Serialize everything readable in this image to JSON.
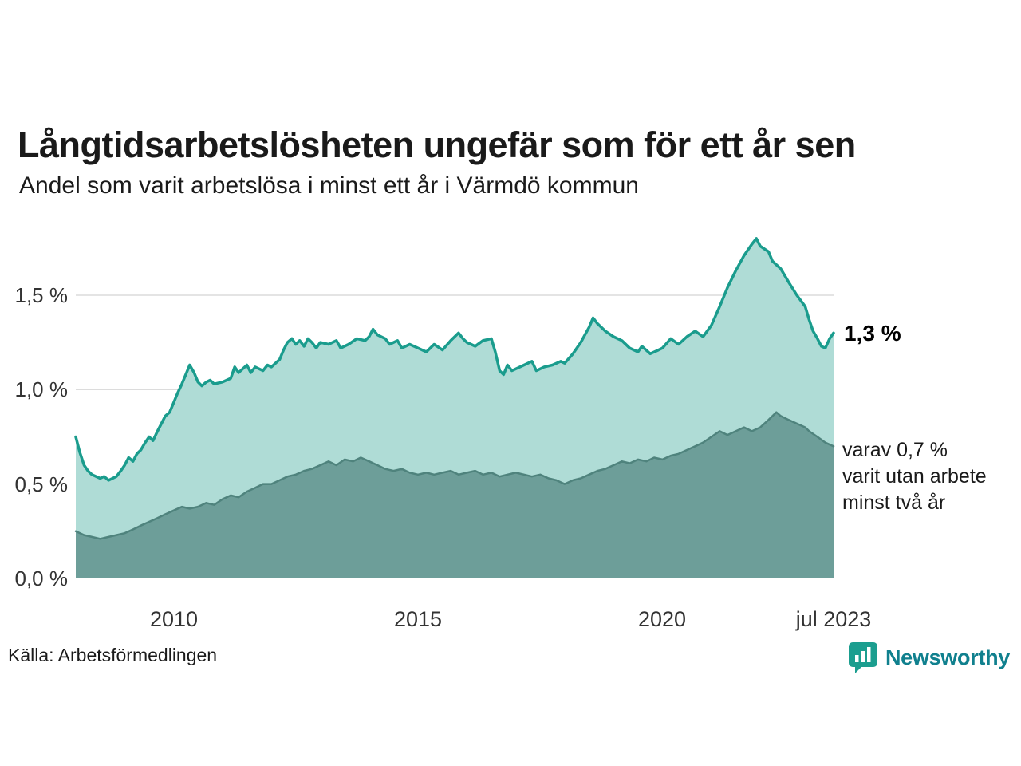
{
  "header": {
    "title": "Långtidsarbetslösheten ungefär som för ett år sen",
    "subtitle": "Andel som varit arbetslösa i minst ett år i Värmdö kommun"
  },
  "annotations": {
    "latest_value": "1,3 %",
    "two_year_line1": "varav 0,7 %",
    "two_year_line2": "varit utan arbete",
    "two_year_line3": "minst två år"
  },
  "footer": {
    "source": "Källa: Arbetsförmedlingen",
    "brand": "Newsworthy"
  },
  "colors": {
    "title": "#1a1a1a",
    "grid": "#dcdcdc",
    "axis_text": "#333333",
    "series_one_year_line": "#1a9c8d",
    "series_one_year_fill": "#afdcd6",
    "series_two_year_line": "#4f837d",
    "series_two_year_fill": "#6d9e99",
    "brand_icon": "#1b9e8f",
    "brand_text": "#10808e"
  },
  "chart_data": {
    "type": "area",
    "title": "Långtidsarbetslösheten ungefär som för ett år sen",
    "subtitle": "Andel som varit arbetslösa i minst ett år i Värmdö kommun",
    "unit": "%",
    "x_range": [
      2008.0,
      2023.5
    ],
    "ylim": [
      0,
      1.9
    ],
    "grid": true,
    "y_ticks": [
      {
        "v": 0.0,
        "label": "0,0 %"
      },
      {
        "v": 0.5,
        "label": "0,5 %"
      },
      {
        "v": 1.0,
        "label": "1,0 %"
      },
      {
        "v": 1.5,
        "label": "1,5 %"
      }
    ],
    "x_ticks": [
      {
        "v": 2010,
        "label": "2010"
      },
      {
        "v": 2015,
        "label": "2015"
      },
      {
        "v": 2020,
        "label": "2020"
      },
      {
        "v": 2023.5,
        "label": "jul 2023"
      }
    ],
    "series": [
      {
        "name": "Arbetslösa minst ett år",
        "end_label": "1,3 %",
        "latest": 1.3,
        "line": "#1a9c8d",
        "fill": "#afdcd6",
        "points": [
          [
            2008.0,
            0.75
          ],
          [
            2008.08,
            0.67
          ],
          [
            2008.17,
            0.6
          ],
          [
            2008.25,
            0.57
          ],
          [
            2008.33,
            0.55
          ],
          [
            2008.5,
            0.53
          ],
          [
            2008.58,
            0.54
          ],
          [
            2008.67,
            0.52
          ],
          [
            2008.83,
            0.54
          ],
          [
            2008.92,
            0.57
          ],
          [
            2009.0,
            0.6
          ],
          [
            2009.08,
            0.64
          ],
          [
            2009.17,
            0.62
          ],
          [
            2009.25,
            0.66
          ],
          [
            2009.33,
            0.68
          ],
          [
            2009.42,
            0.72
          ],
          [
            2009.5,
            0.75
          ],
          [
            2009.58,
            0.73
          ],
          [
            2009.67,
            0.78
          ],
          [
            2009.75,
            0.82
          ],
          [
            2009.83,
            0.86
          ],
          [
            2009.92,
            0.88
          ],
          [
            2010.0,
            0.93
          ],
          [
            2010.08,
            0.98
          ],
          [
            2010.17,
            1.03
          ],
          [
            2010.25,
            1.08
          ],
          [
            2010.33,
            1.13
          ],
          [
            2010.42,
            1.09
          ],
          [
            2010.5,
            1.04
          ],
          [
            2010.58,
            1.02
          ],
          [
            2010.67,
            1.04
          ],
          [
            2010.75,
            1.05
          ],
          [
            2010.83,
            1.03
          ],
          [
            2011.0,
            1.04
          ],
          [
            2011.17,
            1.06
          ],
          [
            2011.25,
            1.12
          ],
          [
            2011.33,
            1.09
          ],
          [
            2011.5,
            1.13
          ],
          [
            2011.58,
            1.09
          ],
          [
            2011.67,
            1.12
          ],
          [
            2011.83,
            1.1
          ],
          [
            2011.92,
            1.13
          ],
          [
            2012.0,
            1.12
          ],
          [
            2012.17,
            1.16
          ],
          [
            2012.25,
            1.21
          ],
          [
            2012.33,
            1.25
          ],
          [
            2012.42,
            1.27
          ],
          [
            2012.5,
            1.24
          ],
          [
            2012.58,
            1.26
          ],
          [
            2012.67,
            1.23
          ],
          [
            2012.75,
            1.27
          ],
          [
            2012.83,
            1.25
          ],
          [
            2012.92,
            1.22
          ],
          [
            2013.0,
            1.25
          ],
          [
            2013.17,
            1.24
          ],
          [
            2013.33,
            1.26
          ],
          [
            2013.42,
            1.22
          ],
          [
            2013.58,
            1.24
          ],
          [
            2013.75,
            1.27
          ],
          [
            2013.92,
            1.26
          ],
          [
            2014.0,
            1.28
          ],
          [
            2014.08,
            1.32
          ],
          [
            2014.17,
            1.29
          ],
          [
            2014.33,
            1.27
          ],
          [
            2014.42,
            1.24
          ],
          [
            2014.58,
            1.26
          ],
          [
            2014.67,
            1.22
          ],
          [
            2014.83,
            1.24
          ],
          [
            2015.0,
            1.22
          ],
          [
            2015.17,
            1.2
          ],
          [
            2015.33,
            1.24
          ],
          [
            2015.5,
            1.21
          ],
          [
            2015.67,
            1.26
          ],
          [
            2015.83,
            1.3
          ],
          [
            2015.92,
            1.27
          ],
          [
            2016.0,
            1.25
          ],
          [
            2016.17,
            1.23
          ],
          [
            2016.33,
            1.26
          ],
          [
            2016.5,
            1.27
          ],
          [
            2016.58,
            1.2
          ],
          [
            2016.67,
            1.1
          ],
          [
            2016.75,
            1.08
          ],
          [
            2016.83,
            1.13
          ],
          [
            2016.92,
            1.1
          ],
          [
            2017.0,
            1.11
          ],
          [
            2017.17,
            1.13
          ],
          [
            2017.33,
            1.15
          ],
          [
            2017.42,
            1.1
          ],
          [
            2017.58,
            1.12
          ],
          [
            2017.75,
            1.13
          ],
          [
            2017.92,
            1.15
          ],
          [
            2018.0,
            1.14
          ],
          [
            2018.17,
            1.19
          ],
          [
            2018.33,
            1.25
          ],
          [
            2018.5,
            1.33
          ],
          [
            2018.58,
            1.38
          ],
          [
            2018.67,
            1.35
          ],
          [
            2018.83,
            1.31
          ],
          [
            2019.0,
            1.28
          ],
          [
            2019.17,
            1.26
          ],
          [
            2019.33,
            1.22
          ],
          [
            2019.5,
            1.2
          ],
          [
            2019.58,
            1.23
          ],
          [
            2019.75,
            1.19
          ],
          [
            2019.92,
            1.21
          ],
          [
            2020.0,
            1.22
          ],
          [
            2020.17,
            1.27
          ],
          [
            2020.33,
            1.24
          ],
          [
            2020.5,
            1.28
          ],
          [
            2020.67,
            1.31
          ],
          [
            2020.83,
            1.28
          ],
          [
            2021.0,
            1.34
          ],
          [
            2021.17,
            1.44
          ],
          [
            2021.33,
            1.54
          ],
          [
            2021.5,
            1.63
          ],
          [
            2021.67,
            1.71
          ],
          [
            2021.83,
            1.77
          ],
          [
            2021.92,
            1.8
          ],
          [
            2022.0,
            1.76
          ],
          [
            2022.17,
            1.73
          ],
          [
            2022.25,
            1.68
          ],
          [
            2022.42,
            1.64
          ],
          [
            2022.58,
            1.57
          ],
          [
            2022.75,
            1.5
          ],
          [
            2022.92,
            1.44
          ],
          [
            2023.0,
            1.37
          ],
          [
            2023.08,
            1.31
          ],
          [
            2023.17,
            1.27
          ],
          [
            2023.25,
            1.23
          ],
          [
            2023.33,
            1.22
          ],
          [
            2023.42,
            1.27
          ],
          [
            2023.5,
            1.3
          ]
        ]
      },
      {
        "name": "Utan arbete minst två år",
        "end_label": "0,7 %",
        "latest": 0.7,
        "line": "#4f837d",
        "fill": "#6d9e99",
        "points": [
          [
            2008.0,
            0.25
          ],
          [
            2008.17,
            0.23
          ],
          [
            2008.33,
            0.22
          ],
          [
            2008.5,
            0.21
          ],
          [
            2008.67,
            0.22
          ],
          [
            2008.83,
            0.23
          ],
          [
            2009.0,
            0.24
          ],
          [
            2009.17,
            0.26
          ],
          [
            2009.33,
            0.28
          ],
          [
            2009.5,
            0.3
          ],
          [
            2009.67,
            0.32
          ],
          [
            2009.83,
            0.34
          ],
          [
            2010.0,
            0.36
          ],
          [
            2010.17,
            0.38
          ],
          [
            2010.33,
            0.37
          ],
          [
            2010.5,
            0.38
          ],
          [
            2010.67,
            0.4
          ],
          [
            2010.83,
            0.39
          ],
          [
            2011.0,
            0.42
          ],
          [
            2011.17,
            0.44
          ],
          [
            2011.33,
            0.43
          ],
          [
            2011.5,
            0.46
          ],
          [
            2011.67,
            0.48
          ],
          [
            2011.83,
            0.5
          ],
          [
            2012.0,
            0.5
          ],
          [
            2012.17,
            0.52
          ],
          [
            2012.33,
            0.54
          ],
          [
            2012.5,
            0.55
          ],
          [
            2012.67,
            0.57
          ],
          [
            2012.83,
            0.58
          ],
          [
            2013.0,
            0.6
          ],
          [
            2013.17,
            0.62
          ],
          [
            2013.33,
            0.6
          ],
          [
            2013.5,
            0.63
          ],
          [
            2013.67,
            0.62
          ],
          [
            2013.83,
            0.64
          ],
          [
            2014.0,
            0.62
          ],
          [
            2014.17,
            0.6
          ],
          [
            2014.33,
            0.58
          ],
          [
            2014.5,
            0.57
          ],
          [
            2014.67,
            0.58
          ],
          [
            2014.83,
            0.56
          ],
          [
            2015.0,
            0.55
          ],
          [
            2015.17,
            0.56
          ],
          [
            2015.33,
            0.55
          ],
          [
            2015.5,
            0.56
          ],
          [
            2015.67,
            0.57
          ],
          [
            2015.83,
            0.55
          ],
          [
            2016.0,
            0.56
          ],
          [
            2016.17,
            0.57
          ],
          [
            2016.33,
            0.55
          ],
          [
            2016.5,
            0.56
          ],
          [
            2016.67,
            0.54
          ],
          [
            2016.83,
            0.55
          ],
          [
            2017.0,
            0.56
          ],
          [
            2017.17,
            0.55
          ],
          [
            2017.33,
            0.54
          ],
          [
            2017.5,
            0.55
          ],
          [
            2017.67,
            0.53
          ],
          [
            2017.83,
            0.52
          ],
          [
            2018.0,
            0.5
          ],
          [
            2018.17,
            0.52
          ],
          [
            2018.33,
            0.53
          ],
          [
            2018.5,
            0.55
          ],
          [
            2018.67,
            0.57
          ],
          [
            2018.83,
            0.58
          ],
          [
            2019.0,
            0.6
          ],
          [
            2019.17,
            0.62
          ],
          [
            2019.33,
            0.61
          ],
          [
            2019.5,
            0.63
          ],
          [
            2019.67,
            0.62
          ],
          [
            2019.83,
            0.64
          ],
          [
            2020.0,
            0.63
          ],
          [
            2020.17,
            0.65
          ],
          [
            2020.33,
            0.66
          ],
          [
            2020.5,
            0.68
          ],
          [
            2020.67,
            0.7
          ],
          [
            2020.83,
            0.72
          ],
          [
            2021.0,
            0.75
          ],
          [
            2021.17,
            0.78
          ],
          [
            2021.33,
            0.76
          ],
          [
            2021.5,
            0.78
          ],
          [
            2021.67,
            0.8
          ],
          [
            2021.83,
            0.78
          ],
          [
            2022.0,
            0.8
          ],
          [
            2022.17,
            0.84
          ],
          [
            2022.33,
            0.88
          ],
          [
            2022.42,
            0.86
          ],
          [
            2022.58,
            0.84
          ],
          [
            2022.75,
            0.82
          ],
          [
            2022.92,
            0.8
          ],
          [
            2023.0,
            0.78
          ],
          [
            2023.17,
            0.75
          ],
          [
            2023.33,
            0.72
          ],
          [
            2023.5,
            0.7
          ]
        ]
      }
    ],
    "legend": "none",
    "annotations": [
      {
        "text": "1,3 %",
        "x": 2023.5,
        "y": 1.3
      },
      {
        "text": "varav 0,7 % varit utan arbete minst två år",
        "x": 2023.5,
        "y": 0.7
      }
    ]
  }
}
